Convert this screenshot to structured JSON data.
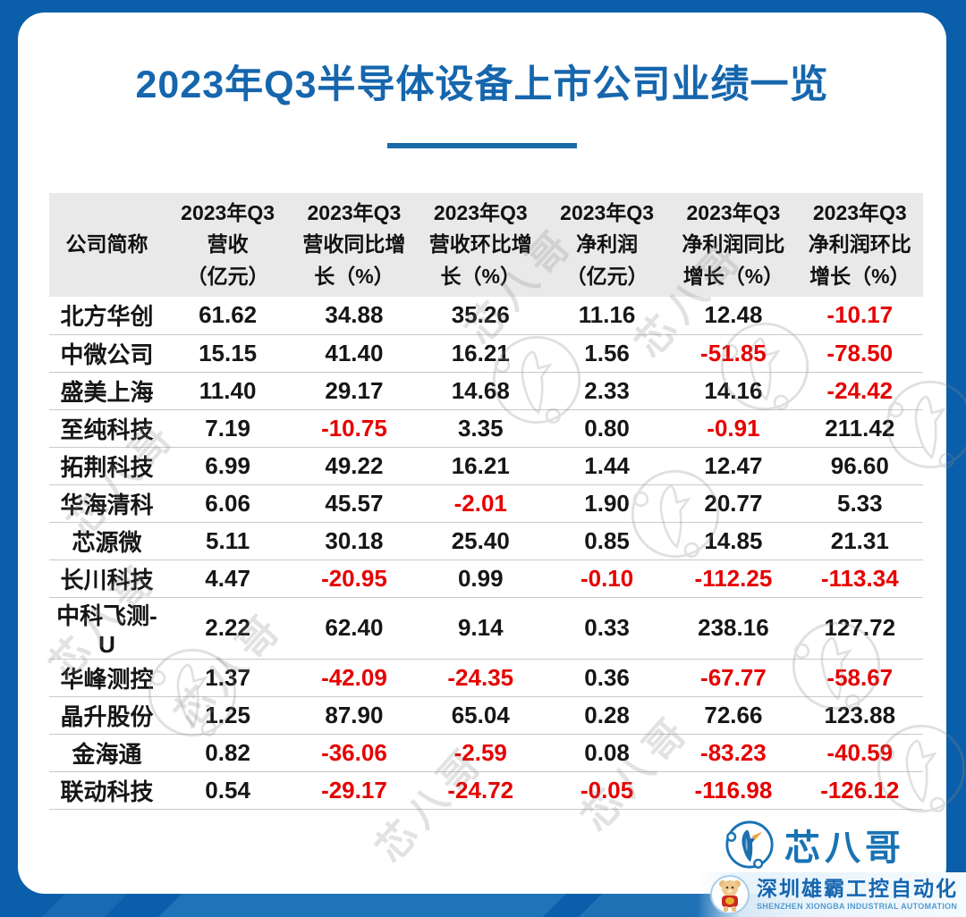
{
  "title": "2023年Q3半导体设备上市公司业绩一览",
  "colors": {
    "frame_blue": "#0b5ea9",
    "title_blue": "#1566ad",
    "header_gray": "#e9e9e9",
    "negative_red": "#e60000",
    "logo_blue": "#1873b4"
  },
  "table": {
    "headers": [
      "公司简称",
      "2023年Q3\n营收\n（亿元）",
      "2023年Q3\n营收同比增\n长（%）",
      "2023年Q3\n营收环比增\n长（%）",
      "2023年Q3\n净利润\n（亿元）",
      "2023年Q3\n净利润同比\n增长（%）",
      "2023年Q3\n净利润环比\n增长（%）"
    ]
  },
  "chart_data": {
    "type": "table",
    "title": "2023年Q3半导体设备上市公司业绩一览",
    "columns": [
      "公司简称",
      "2023年Q3营收（亿元）",
      "2023年Q3营收同比增长（%）",
      "2023年Q3营收环比增长（%）",
      "2023年Q3净利润（亿元）",
      "2023年Q3净利润同比增长（%）",
      "2023年Q3净利润环比增长（%）"
    ],
    "rows": [
      [
        "北方华创",
        61.62,
        34.88,
        35.26,
        11.16,
        12.48,
        -10.17
      ],
      [
        "中微公司",
        15.15,
        41.4,
        16.21,
        1.56,
        -51.85,
        -78.5
      ],
      [
        "盛美上海",
        11.4,
        29.17,
        14.68,
        2.33,
        14.16,
        -24.42
      ],
      [
        "至纯科技",
        7.19,
        -10.75,
        3.35,
        0.8,
        -0.91,
        211.42
      ],
      [
        "拓荆科技",
        6.99,
        49.22,
        16.21,
        1.44,
        12.47,
        96.6
      ],
      [
        "华海清科",
        6.06,
        45.57,
        -2.01,
        1.9,
        20.77,
        5.33
      ],
      [
        "芯源微",
        5.11,
        30.18,
        25.4,
        0.85,
        14.85,
        21.31
      ],
      [
        "长川科技",
        4.47,
        -20.95,
        0.99,
        -0.1,
        -112.25,
        -113.34
      ],
      [
        "中科飞测-U",
        2.22,
        62.4,
        9.14,
        0.33,
        238.16,
        127.72
      ],
      [
        "华峰测控",
        1.37,
        -42.09,
        -24.35,
        0.36,
        -67.77,
        -58.67
      ],
      [
        "晶升股份",
        1.25,
        87.9,
        65.04,
        0.28,
        72.66,
        123.88
      ],
      [
        "金海通",
        0.82,
        -36.06,
        -2.59,
        0.08,
        -83.23,
        -40.59
      ],
      [
        "联动科技",
        0.54,
        -29.17,
        -24.72,
        -0.05,
        -116.98,
        -126.12
      ]
    ],
    "value_format": "2 decimal places",
    "style_rule": "negative values rendered in red, others black",
    "legend_position": "none",
    "grid": "horizontal row separators only"
  },
  "watermark_text": "芯八哥",
  "footer": {
    "logo_text": "芯八哥",
    "banner_cn": "深圳雄霸工控自动化",
    "banner_en": "SHENZHEN XIONGBA INDUSTRIAL AUTOMATION"
  }
}
